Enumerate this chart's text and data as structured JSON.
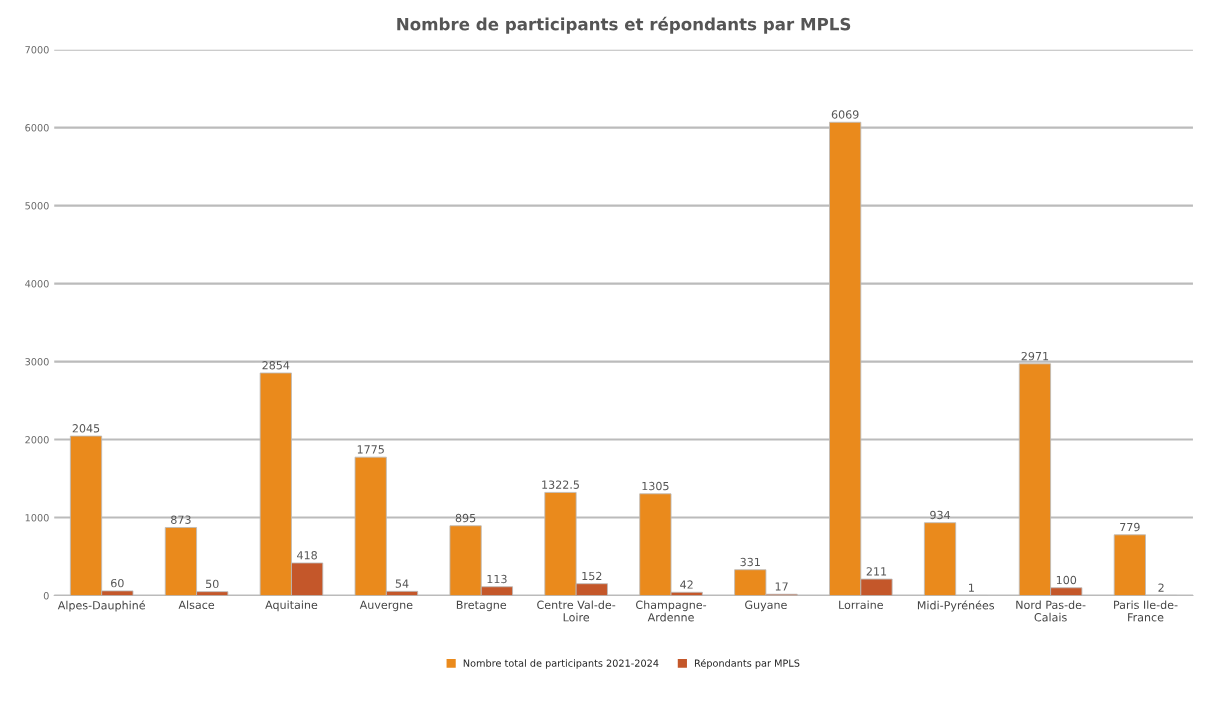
{
  "chart_data": {
    "type": "bar",
    "title": "Nombre de participants et répondants par MPLS",
    "categories": [
      "Alpes-Dauphiné",
      "Alsace",
      "Aquitaine",
      "Auvergne",
      "Bretagne",
      "Centre Val-de-Loire",
      "Champagne-Ardenne",
      "Guyane",
      "Lorraine",
      "Midi-Pyrénées",
      "Nord Pas-de-Calais",
      "Paris Ile-de-France"
    ],
    "series": [
      {
        "name": "Nombre total de participants 2021-2024",
        "color": "#ea8a1c",
        "values": [
          2045,
          873,
          2854,
          1775,
          895,
          1322.5,
          1305,
          331,
          6069,
          934,
          2971,
          779
        ]
      },
      {
        "name": "Répondants par MPLS",
        "color": "#c4572a",
        "values": [
          60,
          50,
          418,
          54,
          113,
          152,
          42,
          17,
          211,
          1,
          100,
          2
        ]
      }
    ],
    "ylim": [
      0,
      7000
    ],
    "yticks": [
      0,
      1000,
      2000,
      3000,
      4000,
      5000,
      6000,
      7000
    ],
    "grid": "y",
    "legend": "bottom",
    "data_labels": true
  }
}
